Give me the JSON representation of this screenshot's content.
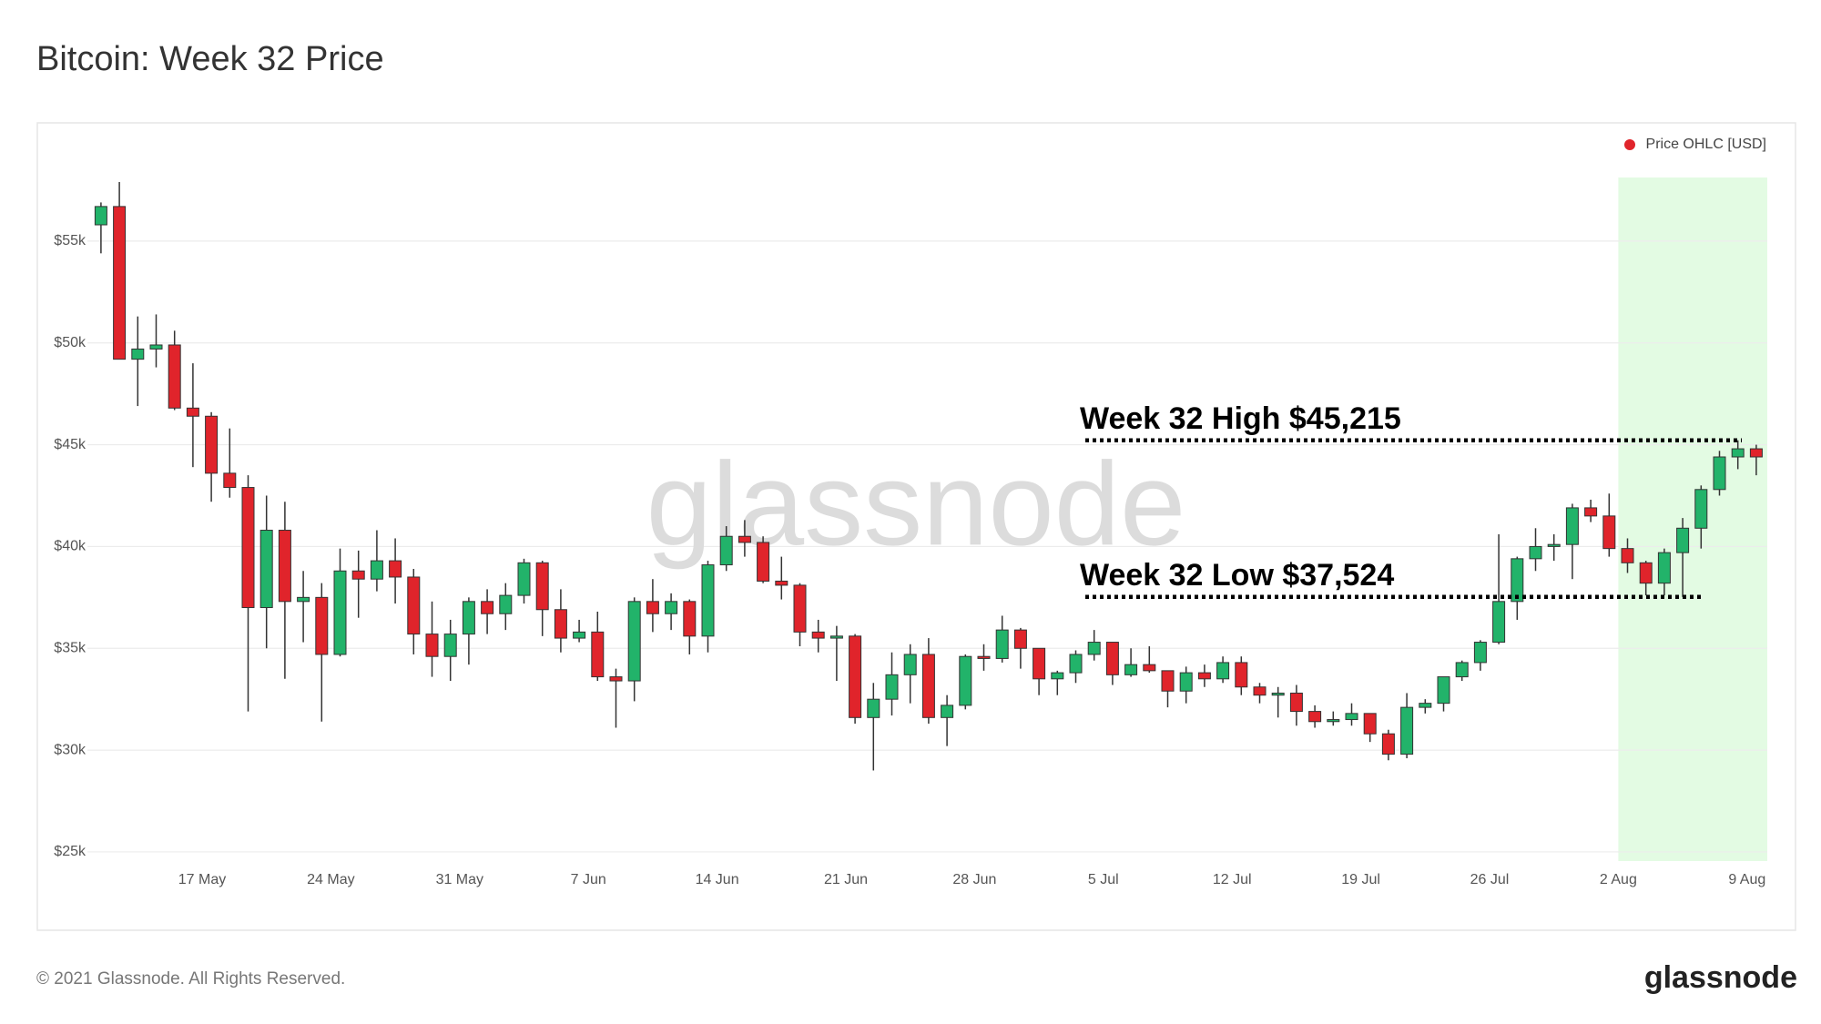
{
  "chart_data": {
    "type": "candlestick",
    "title": "Bitcoin: Week 32 Price",
    "legend": "top-right",
    "series_name": "Price OHLC [USD]",
    "color": "#e0242b",
    "up_color": "#22b36a",
    "down_color": "#e0242b",
    "highlight_from": "2 Aug",
    "highlight_color": "#e3fbe3",
    "watermark": "glassnode",
    "footer": "© 2021 Glassnode. All Rights Reserved.",
    "logo": "glassnode",
    "annotations": [
      {
        "text": "Week 32 High $45,215",
        "value": 45215
      },
      {
        "text": "Week 32 Low $37,524",
        "value": 37524
      }
    ],
    "grid": true,
    "ylim": [
      24550,
      59690
    ],
    "yticks": [
      {
        "value": 25000,
        "label": "$25k"
      },
      {
        "value": 30000,
        "label": "$30k"
      },
      {
        "value": 35000,
        "label": "$35k"
      },
      {
        "value": 40000,
        "label": "$40k"
      },
      {
        "value": 45000,
        "label": "$45k"
      },
      {
        "value": 50000,
        "label": "$50k"
      },
      {
        "value": 55000,
        "label": "$55k"
      }
    ],
    "x": [
      null,
      null,
      null,
      null,
      null,
      null,
      "17 May",
      null,
      null,
      null,
      null,
      null,
      null,
      "24 May",
      null,
      null,
      null,
      null,
      null,
      null,
      "31 May",
      null,
      null,
      null,
      null,
      null,
      null,
      "7 Jun",
      null,
      null,
      null,
      null,
      null,
      null,
      "14 Jun",
      null,
      null,
      null,
      null,
      null,
      null,
      "21 Jun",
      null,
      null,
      null,
      null,
      null,
      null,
      "28 Jun",
      null,
      null,
      null,
      null,
      null,
      null,
      "5 Jul",
      null,
      null,
      null,
      null,
      null,
      null,
      "12 Jul",
      null,
      null,
      null,
      null,
      null,
      null,
      "19 Jul",
      null,
      null,
      null,
      null,
      null,
      null,
      "26 Jul",
      null,
      null,
      null,
      null,
      null,
      null,
      "2 Aug",
      null,
      null,
      null,
      null,
      null,
      null,
      "9 Aug"
    ],
    "open": [
      55800,
      56700,
      49200,
      49700,
      49900,
      46800,
      46400,
      43600,
      42900,
      37000,
      40800,
      37300,
      37500,
      34700,
      38800,
      38400,
      39300,
      38500,
      35700,
      34600,
      35700,
      37300,
      36700,
      37600,
      39200,
      36900,
      35500,
      35800,
      33600,
      33400,
      37300,
      36700,
      37300,
      35600,
      39100,
      40500,
      40200,
      38300,
      38100,
      35800,
      35500,
      35600,
      31600,
      32500,
      33700,
      34700,
      31600,
      32200,
      34600,
      34500,
      35900,
      35000,
      33500,
      33800,
      34700,
      35300,
      33700,
      34200,
      33900,
      32900,
      33800,
      33500,
      34300,
      33100,
      32700,
      32800,
      31900,
      31400,
      31500,
      31800,
      30800,
      29800,
      32100,
      32300,
      33600,
      34300,
      35300,
      37300,
      39400,
      40000,
      40100,
      41900,
      41500,
      39900,
      39200,
      38200,
      39700,
      40900,
      42800,
      44400,
      44800
    ],
    "high": [
      56900,
      57900,
      51300,
      51400,
      50600,
      49000,
      46600,
      45800,
      43500,
      42500,
      42200,
      38800,
      38200,
      39900,
      39800,
      40800,
      40400,
      38900,
      37300,
      36400,
      37500,
      37900,
      38200,
      39400,
      39300,
      37900,
      36400,
      36800,
      34000,
      37500,
      38400,
      37700,
      37400,
      39300,
      41000,
      41300,
      40500,
      39500,
      38200,
      36400,
      36100,
      35700,
      33300,
      34800,
      35200,
      35500,
      32700,
      34700,
      35200,
      36600,
      36000,
      35000,
      33900,
      34900,
      35900,
      35300,
      35000,
      35100,
      33900,
      34100,
      34200,
      34600,
      34600,
      33300,
      33100,
      33200,
      32200,
      31900,
      32300,
      31800,
      31000,
      32800,
      32500,
      33600,
      34400,
      35400,
      40600,
      39500,
      40900,
      40600,
      42100,
      42300,
      42600,
      40400,
      39300,
      39900,
      41400,
      43000,
      44700,
      45215,
      45000
    ],
    "low": [
      54400,
      49200,
      46900,
      48800,
      46700,
      43900,
      42200,
      42400,
      31900,
      35000,
      33500,
      35300,
      31400,
      34600,
      36500,
      37800,
      37200,
      34700,
      33600,
      33400,
      34200,
      35700,
      35900,
      37200,
      35600,
      34800,
      35300,
      33400,
      31100,
      32400,
      35800,
      35900,
      34700,
      34800,
      38800,
      39500,
      38200,
      37400,
      35100,
      34800,
      33400,
      31300,
      29000,
      31700,
      32300,
      31300,
      30200,
      32000,
      33900,
      34300,
      34000,
      32700,
      32700,
      33300,
      34400,
      33200,
      33600,
      33800,
      32100,
      32300,
      33100,
      33300,
      32700,
      32300,
      31600,
      31200,
      31100,
      31200,
      31200,
      30400,
      29500,
      29600,
      31800,
      31900,
      33400,
      33900,
      35200,
      36400,
      38800,
      39300,
      38400,
      41200,
      39500,
      38700,
      37600,
      37600,
      37524,
      39900,
      42500,
      43800,
      43500
    ],
    "close": [
      56700,
      49200,
      49700,
      49900,
      46800,
      46400,
      43600,
      42900,
      37000,
      40800,
      37300,
      37500,
      34700,
      38800,
      38400,
      39300,
      38500,
      35700,
      34600,
      35700,
      37300,
      36700,
      37600,
      39200,
      36900,
      35500,
      35800,
      33600,
      33400,
      37300,
      36700,
      37300,
      35600,
      39100,
      40500,
      40200,
      38300,
      38100,
      35800,
      35500,
      35600,
      31600,
      32500,
      33700,
      34700,
      31600,
      32200,
      34600,
      34500,
      35900,
      35000,
      33500,
      33800,
      34700,
      35300,
      33700,
      34200,
      33900,
      32900,
      33800,
      33500,
      34300,
      33100,
      32700,
      32800,
      31900,
      31400,
      31500,
      31800,
      30800,
      29800,
      32100,
      32300,
      33600,
      34300,
      35300,
      37300,
      39400,
      40000,
      40100,
      41900,
      41500,
      39900,
      39200,
      38200,
      39700,
      40900,
      42800,
      44400,
      44800,
      44400
    ]
  }
}
